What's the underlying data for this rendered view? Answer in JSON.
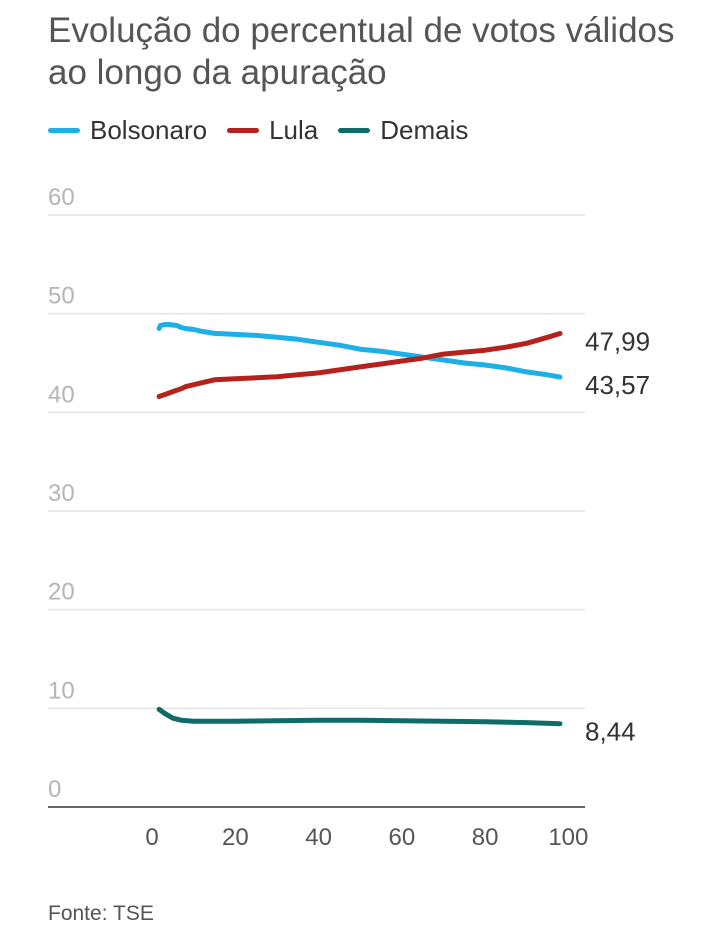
{
  "title": "Evolução do percentual de votos válidos ao longo da apuração",
  "source": "Fonte: TSE",
  "colors": {
    "Bolsonaro": "#1cb0e6",
    "Lula": "#b5211c",
    "Demais": "#0f6b66",
    "grid": "#dddddd",
    "axis": "#333333",
    "tick_y": "#b5b5b5",
    "tick_x": "#555555"
  },
  "chart_data": {
    "type": "line",
    "title": "Evolução do percentual de votos válidos ao longo da apuração",
    "xlabel": "",
    "ylabel": "",
    "xlim": [
      -25,
      104
    ],
    "ylim": [
      0,
      60
    ],
    "xticks": [
      "0",
      "20",
      "40",
      "60",
      "80",
      "100"
    ],
    "yticks": [
      "60",
      "50",
      "40",
      "30",
      "20",
      "10",
      "0"
    ],
    "grid": true,
    "legend_position": "top-left",
    "end_labels": [
      "47,99",
      "43,57",
      "8,44"
    ],
    "series": [
      {
        "name": "Bolsonaro",
        "x": [
          1.7,
          2,
          3,
          4,
          6,
          7,
          8,
          10,
          12,
          15,
          20,
          25,
          30,
          35,
          40,
          45,
          50,
          55,
          60,
          65,
          70,
          75,
          80,
          85,
          90,
          95,
          98
        ],
        "y": [
          48.5,
          48.8,
          48.9,
          48.9,
          48.8,
          48.6,
          48.5,
          48.4,
          48.2,
          48.0,
          47.9,
          47.8,
          47.6,
          47.4,
          47.1,
          46.8,
          46.4,
          46.2,
          45.9,
          45.6,
          45.3,
          45.0,
          44.8,
          44.5,
          44.1,
          43.8,
          43.57
        ]
      },
      {
        "name": "Lula",
        "x": [
          1.7,
          3,
          5,
          7,
          8,
          10,
          12,
          15,
          20,
          25,
          30,
          35,
          40,
          45,
          50,
          55,
          60,
          65,
          70,
          75,
          80,
          85,
          90,
          95,
          98
        ],
        "y": [
          41.6,
          41.8,
          42.1,
          42.4,
          42.6,
          42.8,
          43.0,
          43.3,
          43.4,
          43.5,
          43.6,
          43.8,
          44.0,
          44.3,
          44.6,
          44.9,
          45.2,
          45.5,
          45.9,
          46.1,
          46.3,
          46.6,
          47.0,
          47.6,
          47.99
        ]
      },
      {
        "name": "Demais",
        "x": [
          1.7,
          3,
          5,
          7,
          10,
          15,
          20,
          30,
          40,
          50,
          60,
          70,
          80,
          90,
          98
        ],
        "y": [
          9.9,
          9.5,
          9.0,
          8.8,
          8.7,
          8.7,
          8.7,
          8.75,
          8.8,
          8.8,
          8.75,
          8.7,
          8.65,
          8.55,
          8.44
        ]
      }
    ]
  }
}
